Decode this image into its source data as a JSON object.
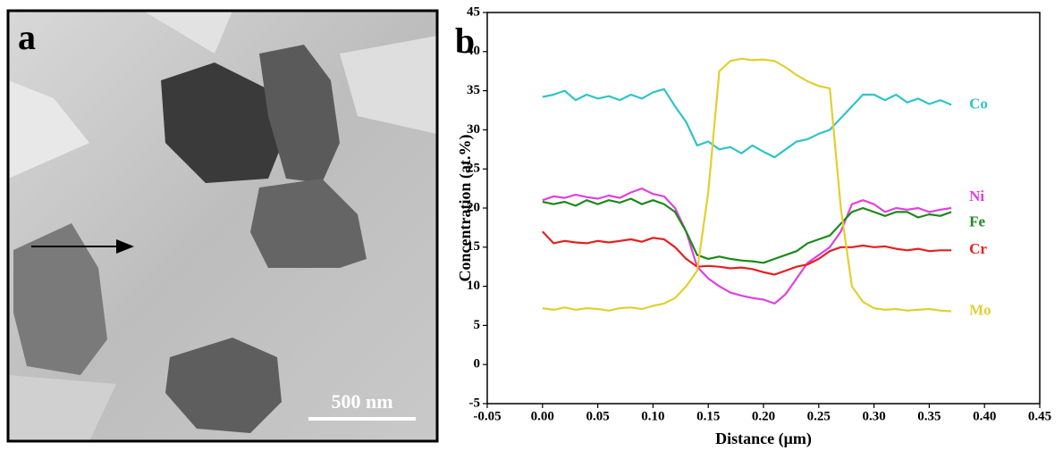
{
  "panels": {
    "a": "a",
    "b": "b"
  },
  "scale_bar": "500 nm",
  "chart_data": {
    "type": "line",
    "x_label": "Distance (μm)",
    "y_label": "Concentration (at.%)",
    "x": [
      0,
      0.01,
      0.02,
      0.03,
      0.04,
      0.05,
      0.06,
      0.07,
      0.08,
      0.09,
      0.1,
      0.11,
      0.12,
      0.13,
      0.14,
      0.15,
      0.16,
      0.17,
      0.18,
      0.19,
      0.2,
      0.21,
      0.22,
      0.23,
      0.24,
      0.25,
      0.26,
      0.27,
      0.28,
      0.29,
      0.3,
      0.31,
      0.32,
      0.33,
      0.34,
      0.35,
      0.36,
      0.37
    ],
    "series": [
      {
        "name": "Co",
        "color": "#2ec4c8",
        "values": [
          34.2,
          34.5,
          35,
          33.8,
          34.5,
          34,
          34.3,
          33.8,
          34.5,
          34,
          34.8,
          35.2,
          33,
          31,
          28,
          28.5,
          27.5,
          27.8,
          27,
          28,
          27.2,
          26.5,
          27.5,
          28.5,
          28.8,
          29.5,
          30,
          31.5,
          33,
          34.5,
          34.5,
          33.8,
          34.5,
          33.5,
          34,
          33.3,
          33.8,
          33.2
        ]
      },
      {
        "name": "Ni",
        "color": "#e040e0",
        "values": [
          21,
          21.5,
          21.3,
          21.7,
          21.4,
          21.2,
          21.6,
          21.3,
          22,
          22.5,
          21.8,
          21.5,
          20,
          17,
          12.5,
          11,
          10,
          9.2,
          8.8,
          8.5,
          8.3,
          7.8,
          9,
          11,
          13,
          14,
          15,
          17,
          20.5,
          21,
          20.5,
          19.5,
          20,
          19.8,
          20,
          19.5,
          19.8,
          20
        ]
      },
      {
        "name": "Fe",
        "color": "#1a8a1a",
        "values": [
          20.8,
          20.5,
          20.8,
          20.3,
          21,
          20.5,
          21,
          20.7,
          21.2,
          20.5,
          21,
          20.5,
          19.5,
          17,
          14,
          13.5,
          13.8,
          13.5,
          13.3,
          13.2,
          13,
          13.5,
          14,
          14.5,
          15.5,
          16,
          16.5,
          18,
          19.5,
          20,
          19.5,
          19,
          19.5,
          19.5,
          18.8,
          19.2,
          19,
          19.5
        ]
      },
      {
        "name": "Cr",
        "color": "#e52020",
        "values": [
          17,
          15.5,
          15.8,
          15.6,
          15.5,
          15.8,
          15.6,
          15.8,
          16,
          15.7,
          16.2,
          16,
          15,
          13.5,
          12.5,
          12.6,
          12.5,
          12.3,
          12.4,
          12.2,
          11.8,
          11.5,
          12,
          12.5,
          12.8,
          13.5,
          14.5,
          15,
          15,
          15.2,
          15,
          15.1,
          14.8,
          14.6,
          14.8,
          14.5,
          14.6,
          14.6
        ]
      },
      {
        "name": "Mo",
        "color": "#e0d030",
        "values": [
          7.2,
          7,
          7.3,
          7,
          7.2,
          7.1,
          6.9,
          7.2,
          7.3,
          7.1,
          7.5,
          7.8,
          8.5,
          10,
          12,
          22,
          37.5,
          38.8,
          39.1,
          38.9,
          39,
          38.8,
          38,
          37,
          36.2,
          35.6,
          35.3,
          20,
          10,
          8,
          7.2,
          7,
          7.1,
          6.9,
          7,
          7.1,
          6.9,
          6.8
        ]
      }
    ],
    "xlim": [
      -0.05,
      0.45
    ],
    "xticks": [
      -0.05,
      {
        "value": 0,
        "label": "0.00"
      },
      0.05,
      {
        "value": 0.1,
        "label": "0.10"
      },
      0.15,
      {
        "value": 0.2,
        "label": "0.20"
      },
      0.25,
      {
        "value": 0.3,
        "label": "0.30"
      },
      0.35,
      {
        "value": 0.4,
        "label": "0.40"
      },
      0.45
    ],
    "ylim": [
      -5,
      45
    ],
    "yticks": [
      -5,
      0,
      5,
      10,
      15,
      20,
      25,
      30,
      35,
      40,
      45
    ]
  }
}
